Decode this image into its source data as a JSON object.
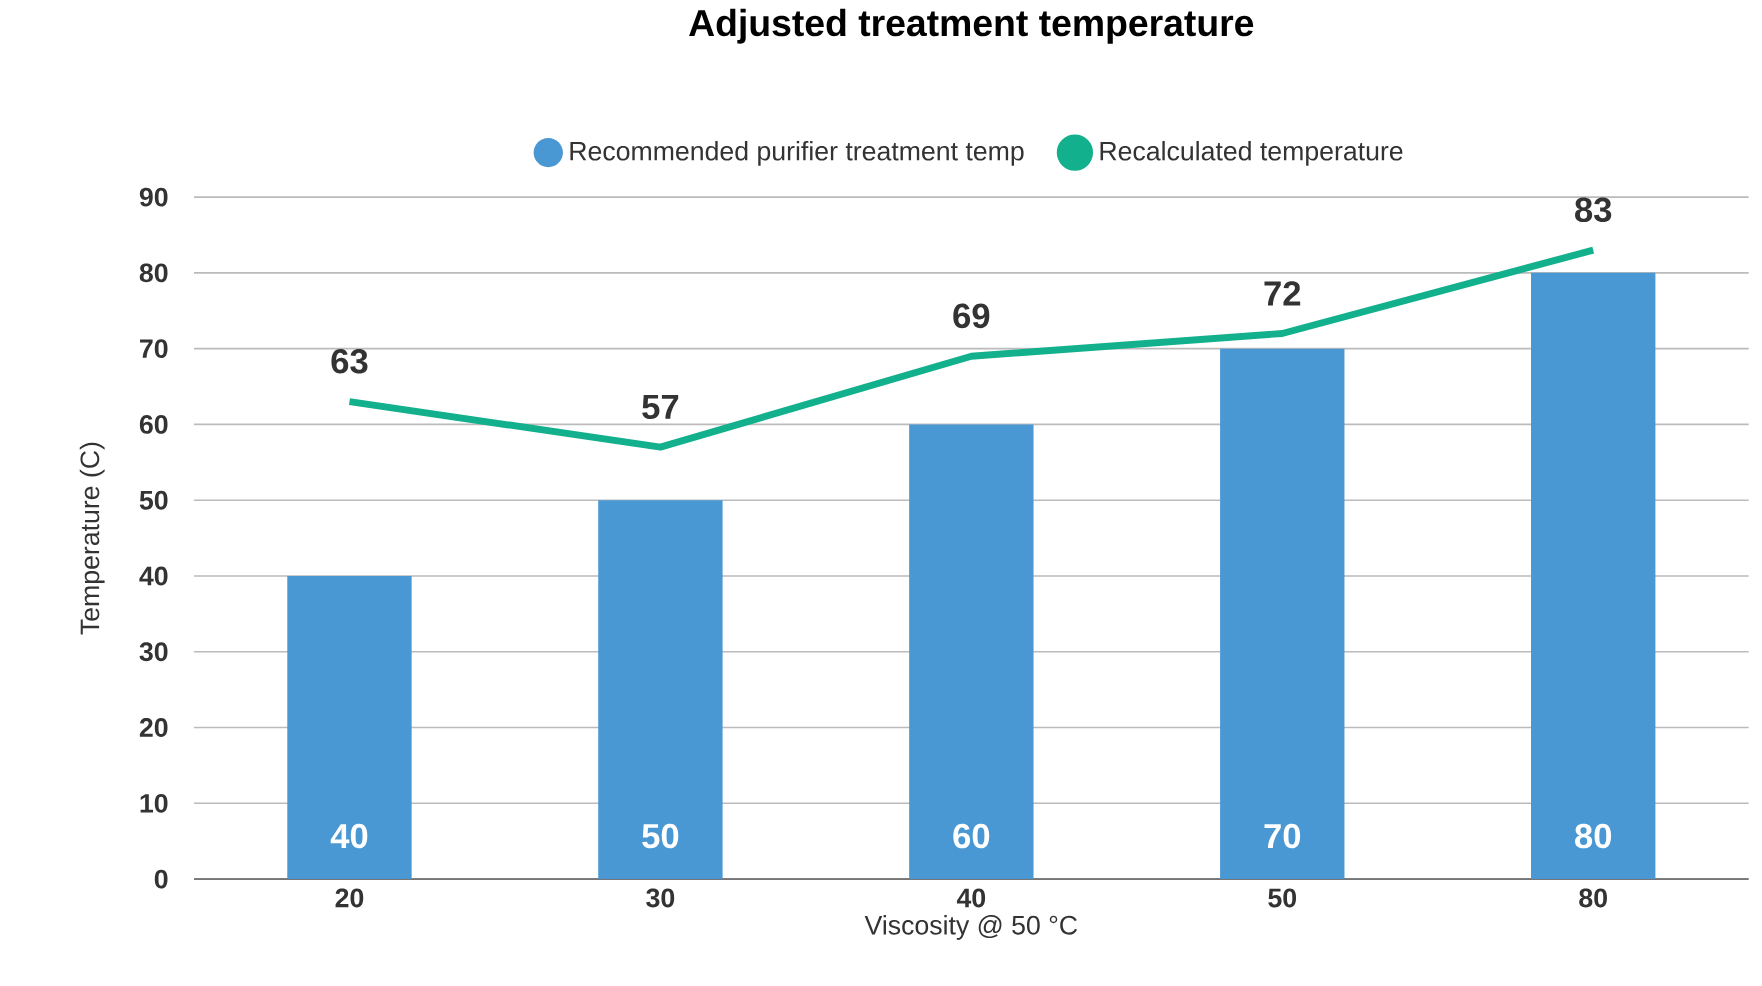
{
  "chart_data": {
    "type": "bar",
    "title": "Adjusted treatment temperature",
    "xlabel": "Viscosity @ 50 °C",
    "ylabel": "Temperature (C)",
    "categories": [
      "20",
      "30",
      "40",
      "50",
      "80"
    ],
    "series": [
      {
        "name": "Recommended purifier treatment temp",
        "color": "#4a98d3",
        "values": [
          40,
          50,
          60,
          70,
          80
        ]
      },
      {
        "name": "Recalculated temperature",
        "type": "line",
        "color": "#12b08c",
        "values": [
          63,
          57,
          69,
          72,
          83
        ]
      }
    ],
    "ylim": [
      0,
      90
    ],
    "yticks": [
      0,
      10,
      20,
      30,
      40,
      50,
      60,
      70,
      80,
      90
    ],
    "grid": "y",
    "legend": "top",
    "data_labels": true
  }
}
